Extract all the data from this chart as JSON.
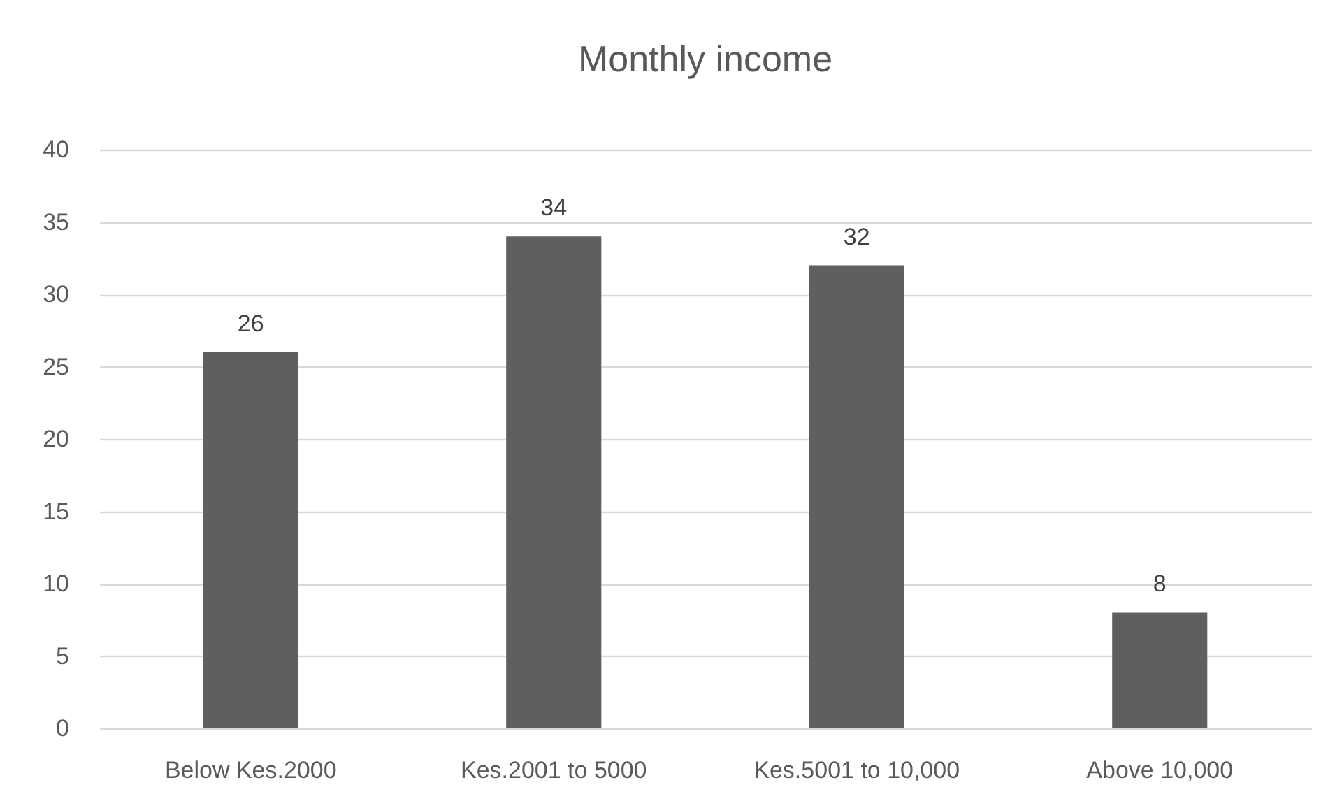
{
  "chart_data": {
    "type": "bar",
    "title": "Monthly income",
    "categories": [
      "Below Kes.2000",
      "Kes.2001 to 5000",
      "Kes.5001 to 10,000",
      "Above 10,000"
    ],
    "values": [
      26,
      34,
      32,
      8
    ],
    "color": "#5f5f5f",
    "ylim": [
      0,
      40
    ],
    "yticks": [
      0,
      5,
      10,
      15,
      20,
      25,
      30,
      35,
      40
    ],
    "grid": "y",
    "data_labels": true
  }
}
